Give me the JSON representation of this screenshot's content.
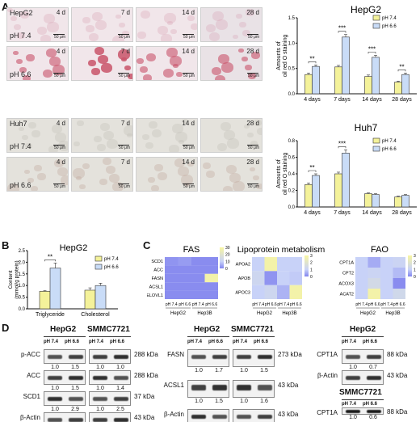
{
  "panels": {
    "A": "A",
    "B": "B",
    "C": "C",
    "D": "D"
  },
  "micrographs": {
    "rows": [
      {
        "cell": "HepG2",
        "ph": "pH 7.4",
        "color": "#d9a6b8"
      },
      {
        "cell": "",
        "ph": "pH 6.6",
        "color": "#c9546a"
      },
      {
        "cell": "Huh7",
        "ph": "pH 7.4",
        "color": "#c4c0b6"
      },
      {
        "cell": "",
        "ph": "pH 6.6",
        "color": "#bfa79a"
      }
    ],
    "days": [
      "4 d",
      "7 d",
      "14 d",
      "28 d"
    ],
    "scale": "50 μm"
  },
  "chart_data": [
    {
      "type": "bar",
      "title": "HepG2",
      "ylabel": "Amounts of oil red O staining",
      "categories": [
        "4 days",
        "7 days",
        "14 days",
        "28 days"
      ],
      "ylim": [
        0,
        1.5
      ],
      "yticks": [
        "0.0",
        "0.5",
        "1.0",
        "1.5"
      ],
      "series": [
        {
          "name": "pH 7.4",
          "color": "#f4f29a",
          "values": [
            0.38,
            0.53,
            0.34,
            0.23
          ],
          "errors": [
            0.03,
            0.03,
            0.03,
            0.02
          ]
        },
        {
          "name": "pH 6.6",
          "color": "#c9dcf7",
          "values": [
            0.54,
            1.12,
            0.72,
            0.38
          ],
          "errors": [
            0.03,
            0.05,
            0.04,
            0.03
          ]
        }
      ],
      "significance": [
        "**",
        "***",
        "***",
        "**"
      ]
    },
    {
      "type": "bar",
      "title": "Huh7",
      "ylabel": "Amounts of oil red O staining",
      "categories": [
        "4 days",
        "7 days",
        "14 days",
        "28 days"
      ],
      "ylim": [
        0,
        0.8
      ],
      "yticks": [
        "0.0",
        "0.2",
        "0.4",
        "0.6",
        "0.8"
      ],
      "series": [
        {
          "name": "pH 7.4",
          "color": "#f4f29a",
          "values": [
            0.27,
            0.4,
            0.16,
            0.12
          ],
          "errors": [
            0.02,
            0.02,
            0.01,
            0.01
          ]
        },
        {
          "name": "pH 6.6",
          "color": "#c9dcf7",
          "values": [
            0.38,
            0.65,
            0.15,
            0.14
          ],
          "errors": [
            0.02,
            0.04,
            0.01,
            0.01
          ]
        }
      ],
      "significance": [
        "**",
        "***",
        "",
        ""
      ]
    },
    {
      "type": "bar",
      "title": "HepG2",
      "ylabel": "Content (mmol/g protein)",
      "categories": [
        "Triglyceride",
        "Cholesterol"
      ],
      "ylim": [
        0,
        2.5
      ],
      "yticks": [
        "0.0",
        "0.5",
        "1.0",
        "1.5",
        "2.0",
        "2.5"
      ],
      "series": [
        {
          "name": "pH 7.4",
          "color": "#f4f29a",
          "values": [
            0.75,
            0.8
          ],
          "errors": [
            0.03,
            0.1
          ]
        },
        {
          "name": "pH 6.6",
          "color": "#c9dcf7",
          "values": [
            1.75,
            1.0
          ],
          "errors": [
            0.22,
            0.1
          ]
        }
      ],
      "significance": [
        "**",
        ""
      ]
    },
    {
      "type": "heatmap",
      "title": "FAS",
      "rows": [
        "SCD1",
        "ACC",
        "FASN",
        "ACSL1",
        "ELOVL1"
      ],
      "cols": [
        "pH 7.4",
        "pH 6.6",
        "pH 7.4",
        "pH 6.6"
      ],
      "groups": [
        "HepG2",
        "Hep3B"
      ],
      "scale_ticks": [
        "30",
        "20",
        "10",
        "0"
      ],
      "scale_max": 30,
      "values": [
        [
          2,
          3,
          1,
          1
        ],
        [
          1,
          1,
          1,
          1
        ],
        [
          1,
          1,
          1,
          28
        ],
        [
          1,
          1,
          1,
          1
        ],
        [
          1,
          1,
          1,
          1
        ]
      ]
    },
    {
      "type": "heatmap",
      "title": "Lipoprotein metabolism",
      "rows": [
        "APOA2",
        "APOB",
        "APOC3"
      ],
      "cols": [
        "pH 7.4",
        "pH 6.6",
        "pH 7.4",
        "pH 6.6"
      ],
      "groups": [
        "HepG2",
        "Hep3B"
      ],
      "scale_ticks": [
        "3",
        "2",
        "1",
        "0"
      ],
      "scale_max": 3,
      "values": [
        [
          1,
          2.8,
          1,
          1
        ],
        [
          1.2,
          0.2,
          1,
          0.9
        ],
        [
          1,
          1.2,
          0.6,
          2.8
        ]
      ]
    },
    {
      "type": "heatmap",
      "title": "FAO",
      "rows": [
        "CPT1A",
        "CPT2",
        "ACOX3",
        "ACAT2"
      ],
      "cols": [
        "pH 7.4",
        "pH 6.6",
        "pH 7.4",
        "pH 6.6"
      ],
      "groups": [
        "HepG2",
        "Hep3B"
      ],
      "scale_ticks": [
        "3",
        "2",
        "1",
        "0"
      ],
      "scale_max": 3,
      "values": [
        [
          1,
          0.5,
          1,
          1.1
        ],
        [
          1,
          1.1,
          1,
          0.7
        ],
        [
          1,
          1.4,
          1,
          0.1
        ],
        [
          1,
          2.8,
          1,
          1.3
        ]
      ]
    }
  ],
  "western": {
    "left": {
      "heads": [
        "HepG2",
        "SMMC7721"
      ],
      "ph": [
        "pH 7.4",
        "pH 6.6",
        "pH 7.4",
        "pH 6.6"
      ],
      "rows": [
        {
          "label": "p-ACC",
          "kda": "288 kDa",
          "vals": [
            "1.0",
            "1.5",
            "1.0",
            "1.0"
          ]
        },
        {
          "label": "ACC",
          "kda": "288 kDa",
          "vals": [
            "1.0",
            "1.5",
            "1.0",
            "1.4"
          ]
        },
        {
          "label": "SCD1",
          "kda": "37 kDa",
          "vals": [
            "1.0",
            "2.9",
            "1.0",
            "2.5"
          ]
        },
        {
          "label": "β-Actin",
          "kda": "43 kDa",
          "vals": []
        }
      ]
    },
    "middle": {
      "heads": [
        "HepG2",
        "SMMC7721"
      ],
      "ph": [
        "pH 7.4",
        "pH 6.6",
        "pH 7.4",
        "pH 6.6"
      ],
      "rows": [
        {
          "label": "FASN",
          "kda": "273 kDa",
          "vals": [
            "1.0",
            "1.7",
            "1.0",
            "1.5"
          ]
        },
        {
          "label": "ACSL1",
          "kda": "43 kDa",
          "vals": [
            "1.0",
            "1.5",
            "1.0",
            "1.6"
          ]
        },
        {
          "label": "β-Actin",
          "kda": "43 kDa",
          "vals": []
        }
      ]
    },
    "right": {
      "head1": "HepG2",
      "head2": "SMMC7721",
      "ph": [
        "pH 7.4",
        "pH 6.6"
      ],
      "rows": [
        {
          "label": "CPT1A",
          "kda": "88 kDa",
          "vals": [
            "1.0",
            "0.7"
          ]
        },
        {
          "label": "β-Actin",
          "kda": "43 kDa",
          "vals": []
        },
        {
          "label": "CPT1A",
          "kda": "88 kDa",
          "vals": [
            "1.0",
            "0.6"
          ]
        }
      ]
    }
  }
}
